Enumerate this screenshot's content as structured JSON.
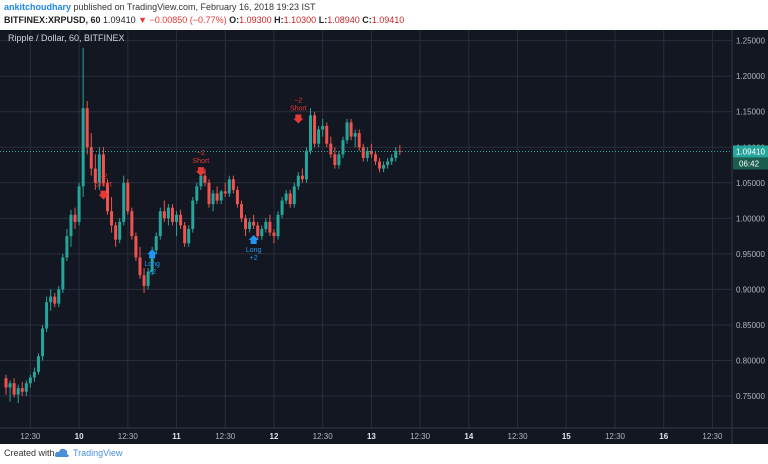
{
  "header": {
    "user": "ankitchoudhary",
    "published_text": "published on TradingView.com, February 16, 2018 19:23 IST",
    "symbol": "BITFINEX:XRPUSD, 60",
    "last": "1.09410",
    "change": "▼ −0.00850 (−0.77%)",
    "o_label": "O:",
    "o_value": "1.09300",
    "h_label": "H:",
    "h_value": "1.10300",
    "l_label": "L:",
    "l_value": "1.08940",
    "c_label": "C:",
    "c_value": "1.09410"
  },
  "footer": {
    "created_with": "Created with",
    "brand": "TradingView"
  },
  "chart_data": {
    "type": "candlestick",
    "title": "Ripple / Dollar, 60, BITFINEX",
    "y_range": [
      0.705,
      1.265
    ],
    "y_ticks": [
      "1.25000",
      "1.20000",
      "1.15000",
      "1.10000",
      "1.05000",
      "1.00000",
      "0.95000",
      "0.90000",
      "0.85000",
      "0.80000",
      "0.75000"
    ],
    "x_ticks": [
      "12:30",
      "10",
      "12:30",
      "11",
      "12:30",
      "12",
      "12:30",
      "13",
      "12:30",
      "14",
      "12:30",
      "15",
      "12:30",
      "16",
      "12:30"
    ],
    "x_tick_index": [
      6,
      18,
      30,
      42,
      54,
      66,
      78,
      90,
      102,
      114,
      126,
      138,
      150,
      162,
      174
    ],
    "bold_x_ticks": [
      1,
      3,
      5,
      7,
      9,
      11,
      13
    ],
    "last_price_label": "1.09410",
    "countdown_label": "06:42",
    "last_price": 1.0941,
    "colors": {
      "up": "#26a69a",
      "down": "#ef5350",
      "background": "#131722",
      "grid": "#2a2e39",
      "axis_text": "#b2b5be",
      "signal_long": "#2196f3",
      "signal_short": "#e53935"
    },
    "signals": [
      {
        "type": "short",
        "index": 24,
        "price": 1.025,
        "text": "Short",
        "qty": "−2"
      },
      {
        "type": "long",
        "index": 36,
        "price": 0.958,
        "text": "Long",
        "qty": "+2"
      },
      {
        "type": "short",
        "index": 48,
        "price": 1.058,
        "text": "Short",
        "qty": "−2"
      },
      {
        "type": "long",
        "index": 61,
        "price": 0.978,
        "text": "Long",
        "qty": "+2"
      },
      {
        "type": "short",
        "index": 72,
        "price": 1.132,
        "text": "Short",
        "qty": "−2"
      }
    ],
    "ohlc": [
      [
        0.775,
        0.78,
        0.752,
        0.762
      ],
      [
        0.762,
        0.772,
        0.742,
        0.768
      ],
      [
        0.768,
        0.775,
        0.748,
        0.752
      ],
      [
        0.752,
        0.766,
        0.74,
        0.761
      ],
      [
        0.761,
        0.77,
        0.75,
        0.756
      ],
      [
        0.756,
        0.772,
        0.75,
        0.768
      ],
      [
        0.768,
        0.78,
        0.762,
        0.776
      ],
      [
        0.776,
        0.79,
        0.77,
        0.784
      ],
      [
        0.784,
        0.81,
        0.78,
        0.806
      ],
      [
        0.806,
        0.85,
        0.8,
        0.845
      ],
      [
        0.845,
        0.89,
        0.84,
        0.882
      ],
      [
        0.882,
        0.9,
        0.87,
        0.89
      ],
      [
        0.89,
        0.895,
        0.875,
        0.88
      ],
      [
        0.88,
        0.905,
        0.875,
        0.9
      ],
      [
        0.9,
        0.95,
        0.895,
        0.945
      ],
      [
        0.945,
        0.985,
        0.94,
        0.975
      ],
      [
        0.975,
        1.012,
        0.96,
        1.005
      ],
      [
        1.005,
        1.015,
        0.985,
        0.995
      ],
      [
        0.995,
        1.05,
        0.99,
        1.045
      ],
      [
        1.045,
        1.24,
        1.03,
        1.155
      ],
      [
        1.155,
        1.165,
        1.09,
        1.1
      ],
      [
        1.1,
        1.12,
        1.06,
        1.07
      ],
      [
        1.07,
        1.09,
        1.04,
        1.05
      ],
      [
        1.05,
        1.1,
        1.04,
        1.09
      ],
      [
        1.09,
        1.1,
        1.045,
        1.05
      ],
      [
        1.05,
        1.055,
        1.005,
        1.01
      ],
      [
        1.01,
        1.03,
        0.98,
        0.99
      ],
      [
        0.99,
        0.995,
        0.96,
        0.97
      ],
      [
        0.97,
        1.0,
        0.965,
        0.995
      ],
      [
        0.995,
        1.06,
        0.99,
        1.05
      ],
      [
        1.05,
        1.055,
        1.005,
        1.01
      ],
      [
        1.01,
        1.015,
        0.97,
        0.975
      ],
      [
        0.975,
        0.98,
        0.94,
        0.945
      ],
      [
        0.945,
        0.96,
        0.915,
        0.92
      ],
      [
        0.92,
        0.93,
        0.895,
        0.905
      ],
      [
        0.905,
        0.93,
        0.9,
        0.925
      ],
      [
        0.925,
        0.96,
        0.92,
        0.955
      ],
      [
        0.955,
        0.98,
        0.95,
        0.975
      ],
      [
        0.975,
        1.015,
        0.97,
        1.01
      ],
      [
        1.01,
        1.025,
        0.995,
        1.0
      ],
      [
        1.0,
        1.02,
        0.99,
        1.015
      ],
      [
        1.015,
        1.02,
        0.99,
        0.995
      ],
      [
        0.995,
        1.01,
        0.975,
        1.005
      ],
      [
        1.005,
        1.012,
        0.985,
        0.99
      ],
      [
        0.99,
        0.995,
        0.96,
        0.965
      ],
      [
        0.965,
        0.99,
        0.96,
        0.985
      ],
      [
        0.985,
        1.03,
        0.98,
        1.025
      ],
      [
        1.025,
        1.05,
        1.02,
        1.045
      ],
      [
        1.045,
        1.065,
        1.04,
        1.06
      ],
      [
        1.06,
        1.07,
        1.045,
        1.05
      ],
      [
        1.05,
        1.055,
        1.015,
        1.02
      ],
      [
        1.02,
        1.04,
        1.01,
        1.035
      ],
      [
        1.035,
        1.045,
        1.02,
        1.025
      ],
      [
        1.025,
        1.04,
        1.02,
        1.038
      ],
      [
        1.038,
        1.05,
        1.03,
        1.035
      ],
      [
        1.035,
        1.06,
        1.03,
        1.055
      ],
      [
        1.055,
        1.06,
        1.035,
        1.04
      ],
      [
        1.04,
        1.045,
        1.015,
        1.02
      ],
      [
        1.02,
        1.025,
        0.995,
        1.0
      ],
      [
        1.0,
        1.005,
        0.975,
        0.985
      ],
      [
        0.985,
        1.0,
        0.98,
        0.995
      ],
      [
        0.995,
        1.005,
        0.985,
        0.99
      ],
      [
        0.99,
        0.995,
        0.97,
        0.975
      ],
      [
        0.975,
        0.99,
        0.97,
        0.985
      ],
      [
        0.985,
        1.0,
        0.98,
        0.995
      ],
      [
        0.995,
        1.005,
        0.975,
        0.98
      ],
      [
        0.98,
        0.985,
        0.965,
        0.975
      ],
      [
        0.975,
        1.01,
        0.97,
        1.005
      ],
      [
        1.005,
        1.03,
        1.0,
        1.025
      ],
      [
        1.025,
        1.04,
        1.02,
        1.035
      ],
      [
        1.035,
        1.04,
        1.015,
        1.02
      ],
      [
        1.02,
        1.05,
        1.015,
        1.045
      ],
      [
        1.045,
        1.065,
        1.04,
        1.06
      ],
      [
        1.06,
        1.07,
        1.05,
        1.055
      ],
      [
        1.055,
        1.1,
        1.05,
        1.095
      ],
      [
        1.095,
        1.155,
        1.09,
        1.145
      ],
      [
        1.145,
        1.15,
        1.1,
        1.105
      ],
      [
        1.105,
        1.13,
        1.1,
        1.125
      ],
      [
        1.125,
        1.14,
        1.115,
        1.13
      ],
      [
        1.13,
        1.135,
        1.1,
        1.105
      ],
      [
        1.105,
        1.115,
        1.085,
        1.09
      ],
      [
        1.09,
        1.1,
        1.07,
        1.075
      ],
      [
        1.075,
        1.095,
        1.07,
        1.09
      ],
      [
        1.09,
        1.115,
        1.085,
        1.11
      ],
      [
        1.11,
        1.14,
        1.105,
        1.135
      ],
      [
        1.135,
        1.14,
        1.11,
        1.115
      ],
      [
        1.115,
        1.125,
        1.1,
        1.12
      ],
      [
        1.12,
        1.125,
        1.095,
        1.1
      ],
      [
        1.1,
        1.105,
        1.08,
        1.085
      ],
      [
        1.085,
        1.1,
        1.08,
        1.095
      ],
      [
        1.095,
        1.105,
        1.085,
        1.09
      ],
      [
        1.09,
        1.095,
        1.075,
        1.08
      ],
      [
        1.08,
        1.085,
        1.065,
        1.07
      ],
      [
        1.07,
        1.08,
        1.065,
        1.075
      ],
      [
        1.075,
        1.085,
        1.07,
        1.08
      ],
      [
        1.08,
        1.09,
        1.075,
        1.085
      ],
      [
        1.085,
        1.1,
        1.08,
        1.095
      ],
      [
        1.095,
        1.103,
        1.089,
        1.0941
      ]
    ]
  }
}
